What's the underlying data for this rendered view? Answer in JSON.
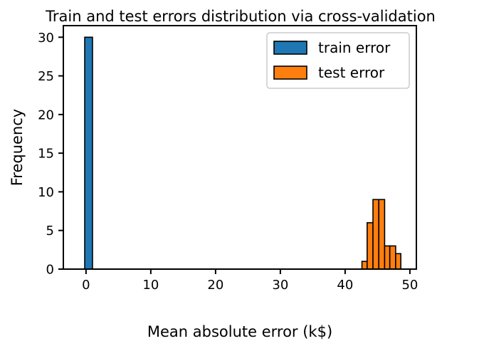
{
  "chart_data": {
    "type": "bar",
    "title": "Train and test errors distribution via cross-validation",
    "xlabel": "Mean absolute error (k$)",
    "ylabel": "Frequency",
    "xlim": [
      -3.5,
      51
    ],
    "ylim": [
      0,
      31.5
    ],
    "xticks": [
      0,
      10,
      20,
      30,
      40,
      50
    ],
    "yticks": [
      0,
      5,
      10,
      15,
      20,
      25,
      30
    ],
    "grid": false,
    "legend_position": "top-right",
    "series": [
      {
        "name": "train error",
        "color": "#1f77b4",
        "bins": [
          {
            "x0": -0.2,
            "x1": 1.0,
            "count": 30
          }
        ]
      },
      {
        "name": "test error",
        "color": "#ff7f0e",
        "bins": [
          {
            "x0": 42.6,
            "x1": 43.4,
            "count": 1
          },
          {
            "x0": 43.4,
            "x1": 44.3,
            "count": 6
          },
          {
            "x0": 44.3,
            "x1": 45.2,
            "count": 9
          },
          {
            "x0": 45.2,
            "x1": 46.1,
            "count": 9
          },
          {
            "x0": 46.1,
            "x1": 46.9,
            "count": 3
          },
          {
            "x0": 46.9,
            "x1": 47.8,
            "count": 3
          },
          {
            "x0": 47.8,
            "x1": 48.6,
            "count": 2
          }
        ]
      }
    ]
  }
}
